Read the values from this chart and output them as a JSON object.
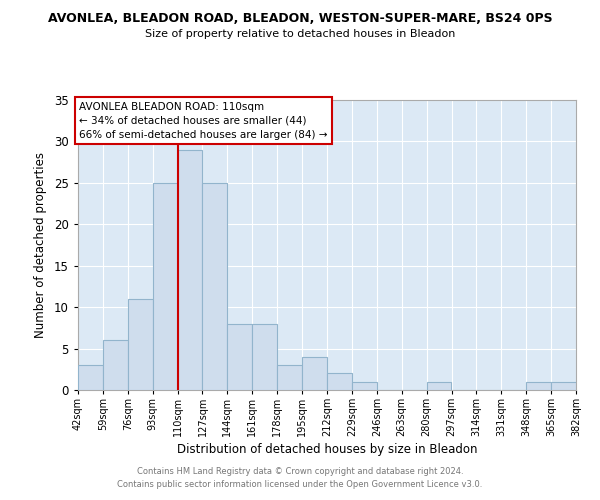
{
  "title": "AVONLEA, BLEADON ROAD, BLEADON, WESTON-SUPER-MARE, BS24 0PS",
  "subtitle": "Size of property relative to detached houses in Bleadon",
  "xlabel": "Distribution of detached houses by size in Bleadon",
  "ylabel": "Number of detached properties",
  "bar_color": "#cfdded",
  "bar_edgecolor": "#92b4cc",
  "plot_bg_color": "#dce9f5",
  "vline_x": 110,
  "vline_color": "#cc0000",
  "annotation_title": "AVONLEA BLEADON ROAD: 110sqm",
  "annotation_line1": "← 34% of detached houses are smaller (44)",
  "annotation_line2": "66% of semi-detached houses are larger (84) →",
  "bin_edges": [
    42,
    59,
    76,
    93,
    110,
    127,
    144,
    161,
    178,
    195,
    212,
    229,
    246,
    263,
    280,
    297,
    314,
    331,
    348,
    365,
    382
  ],
  "counts": [
    3,
    6,
    11,
    25,
    29,
    25,
    8,
    8,
    3,
    4,
    2,
    1,
    0,
    0,
    1,
    0,
    0,
    0,
    1,
    1
  ],
  "ylim": [
    0,
    35
  ],
  "yticks": [
    0,
    5,
    10,
    15,
    20,
    25,
    30,
    35
  ],
  "footer1": "Contains HM Land Registry data © Crown copyright and database right 2024.",
  "footer2": "Contains public sector information licensed under the Open Government Licence v3.0."
}
